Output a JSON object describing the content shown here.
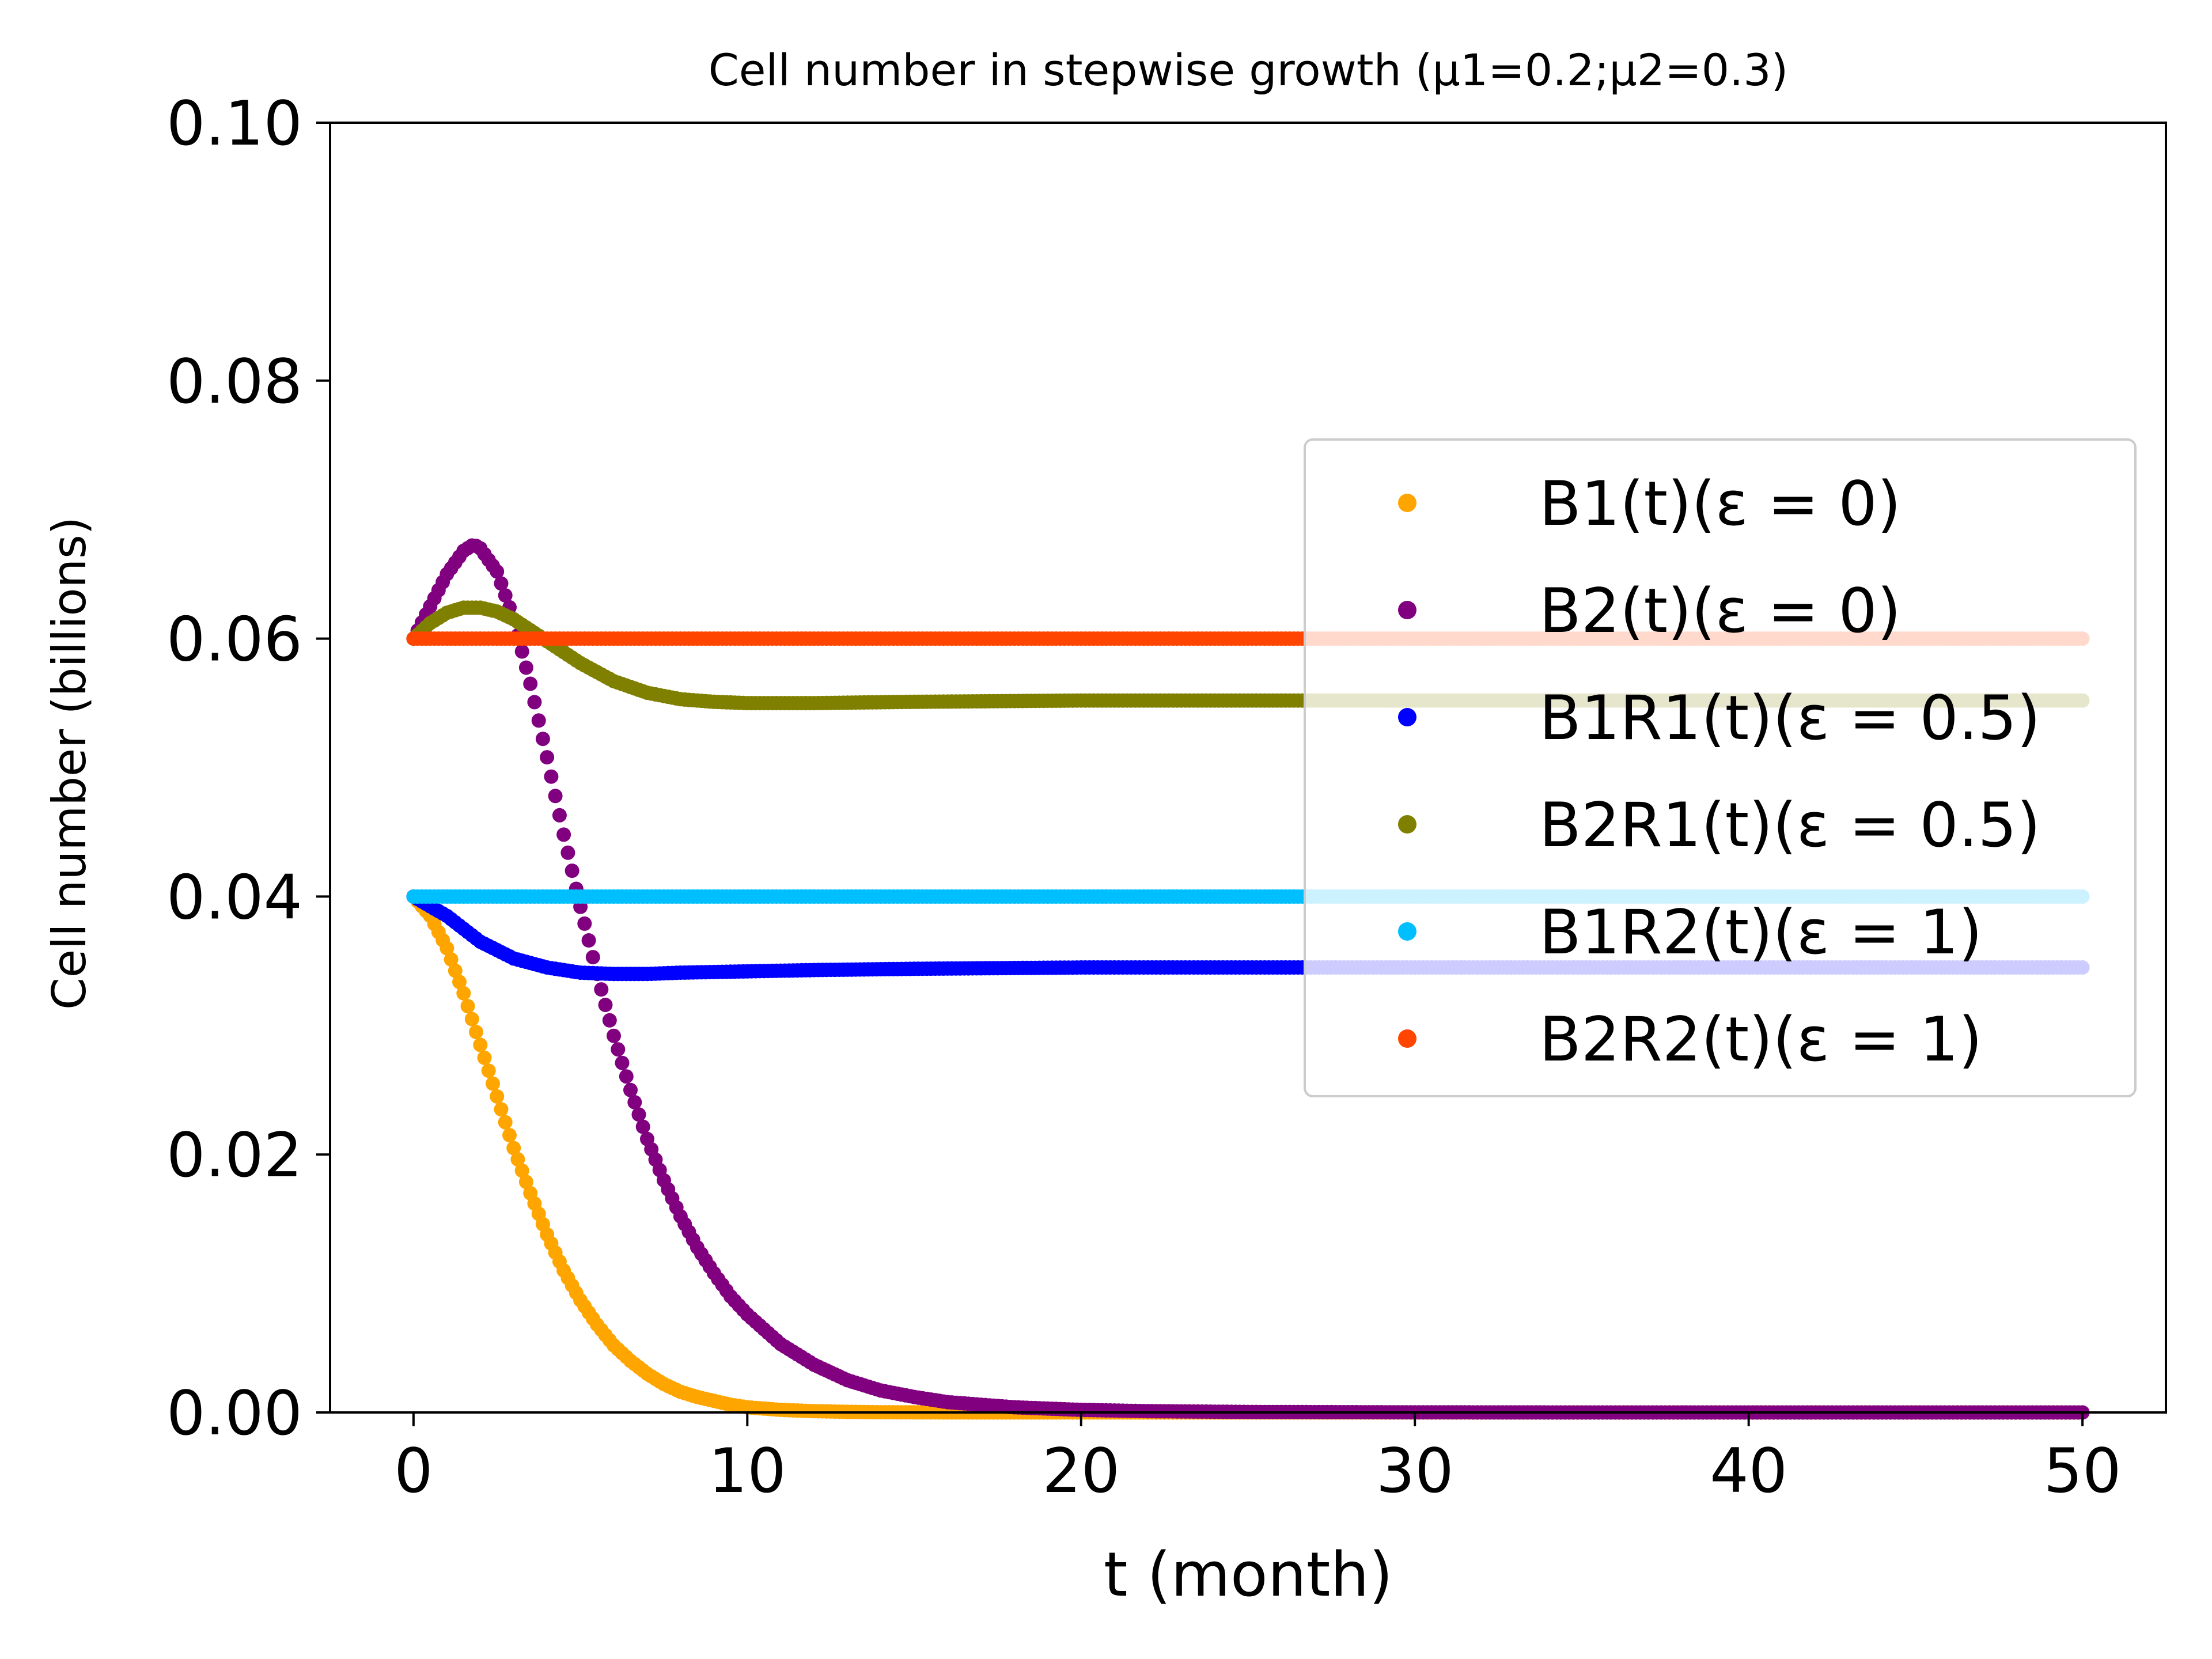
{
  "chart_data": {
    "type": "scatter",
    "title": "Cell number in stepwise growth (μ1=0.2;μ2=0.3)",
    "xlabel": "t (month)",
    "ylabel": "Cell number (billions)",
    "xlim": [
      -2.5,
      52.5
    ],
    "ylim": [
      0,
      0.1
    ],
    "x_ticks": [
      0,
      10,
      20,
      30,
      40,
      50
    ],
    "x_tick_labels": [
      "0",
      "10",
      "20",
      "30",
      "40",
      "50"
    ],
    "y_ticks": [
      0,
      0.02,
      0.04,
      0.06,
      0.08,
      0.1
    ],
    "y_tick_labels": [
      "0.00",
      "0.02",
      "0.04",
      "0.06",
      "0.08",
      "0.10"
    ],
    "grid": false,
    "legend_position": "center-right",
    "series": [
      {
        "name": "B1(t)(ε = 0)",
        "color": "#FFA500",
        "x": [
          0,
          0.5,
          1,
          1.5,
          2,
          2.5,
          3,
          3.5,
          4,
          4.5,
          5,
          5.5,
          6,
          6.5,
          7,
          7.5,
          8,
          8.5,
          9,
          9.5,
          10,
          11,
          12,
          13,
          14,
          15,
          17,
          20,
          25,
          30,
          35,
          40,
          45,
          50
        ],
        "y": [
          0.04,
          0.0385,
          0.036,
          0.0325,
          0.0285,
          0.0245,
          0.0205,
          0.017,
          0.0138,
          0.011,
          0.0087,
          0.0068,
          0.0052,
          0.004,
          0.003,
          0.0022,
          0.0016,
          0.0012,
          0.0009,
          0.0006,
          0.0004,
          0.0002,
          0.0001,
          5e-05,
          2e-05,
          1e-05,
          0,
          0,
          0,
          0,
          0,
          0,
          0,
          0
        ]
      },
      {
        "name": "B2(t)(ε = 0)",
        "color": "#800080",
        "x": [
          0,
          0.5,
          1,
          1.5,
          1.8,
          2,
          2.5,
          3,
          3.5,
          4,
          4.5,
          5,
          5.5,
          6,
          6.5,
          7,
          7.5,
          8,
          8.5,
          9,
          9.5,
          10,
          11,
          12,
          13,
          14,
          15,
          16,
          17,
          18,
          20,
          22,
          25,
          30,
          35,
          40,
          45,
          50
        ],
        "y": [
          0.06,
          0.0625,
          0.065,
          0.0668,
          0.0673,
          0.067,
          0.0652,
          0.0615,
          0.0565,
          0.0508,
          0.0448,
          0.0392,
          0.034,
          0.0292,
          0.025,
          0.0212,
          0.018,
          0.0152,
          0.0128,
          0.0108,
          0.009,
          0.0076,
          0.0053,
          0.0037,
          0.0025,
          0.0017,
          0.0012,
          0.0008,
          0.0006,
          0.0004,
          0.0002,
          0.0001,
          4e-05,
          1e-05,
          0,
          0,
          0,
          0
        ]
      },
      {
        "name": "B1R1(t)(ε = 0.5)",
        "color": "#0000FF",
        "x": [
          0,
          1,
          2,
          3,
          4,
          5,
          6,
          7,
          8,
          10,
          12,
          15,
          20,
          25,
          30,
          35,
          40,
          45,
          50
        ],
        "y": [
          0.04,
          0.0385,
          0.0365,
          0.0352,
          0.0345,
          0.0341,
          0.034,
          0.034,
          0.0341,
          0.0342,
          0.0343,
          0.0344,
          0.0345,
          0.0345,
          0.0345,
          0.0345,
          0.0345,
          0.0345,
          0.0345
        ]
      },
      {
        "name": "B2R1(t)(ε = 0.5)",
        "color": "#808000",
        "x": [
          0,
          0.5,
          1,
          1.5,
          2,
          2.5,
          3,
          4,
          5,
          6,
          7,
          8,
          9,
          10,
          12,
          15,
          20,
          25,
          30,
          35,
          40,
          45,
          50
        ],
        "y": [
          0.06,
          0.0612,
          0.062,
          0.0624,
          0.0624,
          0.0621,
          0.0615,
          0.0598,
          0.0581,
          0.0567,
          0.0558,
          0.0553,
          0.0551,
          0.055,
          0.055,
          0.0551,
          0.0552,
          0.0552,
          0.0552,
          0.0552,
          0.0552,
          0.0552,
          0.0552
        ]
      },
      {
        "name": "B1R2(t)(ε = 1)",
        "color": "#00BFFF",
        "x": [
          0,
          50
        ],
        "y": [
          0.04,
          0.04
        ]
      },
      {
        "name": "B2R2(t)(ε = 1)",
        "color": "#FF4500",
        "x": [
          0,
          50
        ],
        "y": [
          0.06,
          0.06
        ]
      }
    ]
  }
}
